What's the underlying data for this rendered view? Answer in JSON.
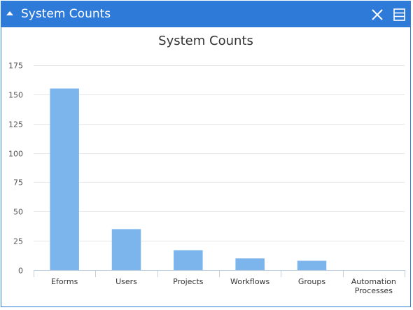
{
  "panel": {
    "title": "System Counts",
    "icons": {
      "collapse": "caret-up-icon",
      "close": "close-icon",
      "menu": "menu-icon"
    },
    "colors": {
      "header": "#2e7ad9",
      "bar": "#7cb5ec"
    }
  },
  "chart_data": {
    "type": "bar",
    "title": "System Counts",
    "categories": [
      "Eforms",
      "Users",
      "Projects",
      "Workflows",
      "Groups",
      "Automation Processes"
    ],
    "values": [
      155,
      35,
      17,
      10,
      8,
      0
    ],
    "yticks": [
      0,
      25,
      50,
      75,
      100,
      125,
      150,
      175
    ],
    "ylim": [
      0,
      175
    ],
    "grid": true,
    "legend": "none"
  }
}
